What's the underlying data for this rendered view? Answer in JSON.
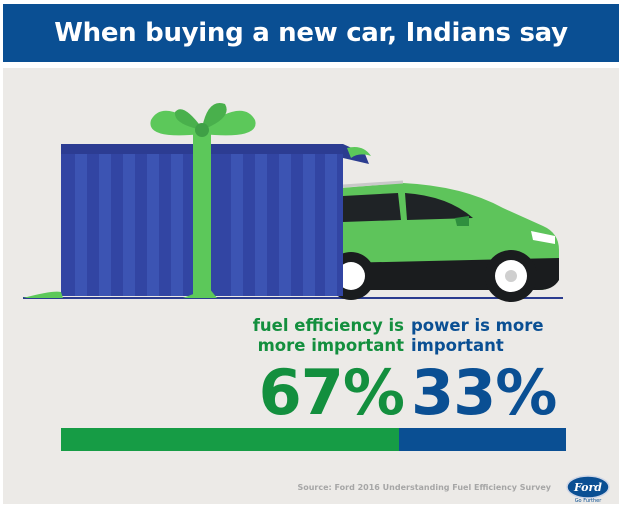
{
  "header": {
    "title": "When buying a new car, Indians say"
  },
  "stats": {
    "fuel": {
      "label_line1": "fuel efficiency is",
      "label_line2": "more important",
      "percent": 67,
      "percent_text": "67%",
      "color": "#169c45"
    },
    "power": {
      "label_line1": "power is more",
      "label_line2": "important",
      "percent": 33,
      "percent_text": "33%",
      "color": "#0a4f93"
    }
  },
  "footer": {
    "source": "Source: Ford 2016 Understanding Fuel Efficiency Survey",
    "logo_text": "Ford",
    "tagline": "Go Further"
  },
  "colors": {
    "header_bg": "#0a4f93",
    "panel_bg": "#eceae7",
    "gift_box": "#3245a3",
    "ribbon": "#5cc85a",
    "car_body": "#5ec45b"
  },
  "icons": [
    "gift-box-illustration",
    "car-illustration",
    "ford-logo-icon"
  ]
}
